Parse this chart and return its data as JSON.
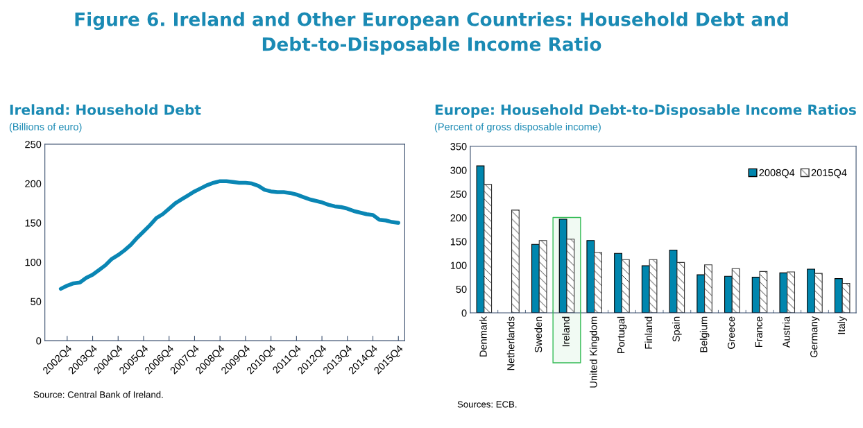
{
  "chart_data": [
    {
      "type": "line",
      "title": "Figure 6. Ireland and Other European Countries: Household Debt and Debt-to-Disposable Income Ratio",
      "subtitle": "Ireland: Household Debt",
      "ylabel": "(Billions of euro)",
      "categories": [
        null,
        "2002Q4",
        null,
        null,
        null,
        "2003Q4",
        null,
        null,
        null,
        "2004Q4",
        null,
        null,
        null,
        "2005Q4",
        null,
        null,
        null,
        "2006Q4",
        null,
        null,
        null,
        "2007Q4",
        null,
        null,
        null,
        "2008Q4",
        null,
        null,
        null,
        "2009Q4",
        null,
        null,
        null,
        "2010Q4",
        null,
        null,
        null,
        "2011Q4",
        null,
        null,
        null,
        "2012Q4",
        null,
        null,
        null,
        "2013Q4",
        null,
        null,
        null,
        "2014Q4",
        null,
        null,
        null,
        "2015Q4"
      ],
      "series": [
        {
          "color": "#0a86b4",
          "values": [
            66,
            70,
            73,
            74,
            80,
            84,
            90,
            96,
            104,
            109,
            115,
            122,
            131,
            139,
            147,
            156,
            161,
            168,
            175,
            180,
            185,
            190,
            194,
            198,
            201,
            203,
            203,
            202,
            201,
            201,
            200,
            197,
            192,
            190,
            189,
            189,
            188,
            186,
            183,
            180,
            178,
            176,
            173,
            171,
            170,
            168,
            165,
            163,
            161,
            160,
            154,
            153,
            151,
            150
          ]
        }
      ],
      "ylim": [
        0,
        250
      ],
      "yticks": [
        0,
        50,
        100,
        150,
        200,
        250
      ],
      "annotations": [
        "Source: Central Bank of Ireland."
      ]
    },
    {
      "type": "bar",
      "title": "Europe: Household Debt-to-Disposable Income Ratios",
      "ylabel": "(Percent of gross disposable income)",
      "categories": [
        "Denmark",
        "Netherlands",
        "Sweden",
        "Ireland",
        "United Kingdom",
        "Portugal",
        "Finland",
        "Spain",
        "Belgium",
        "Greece",
        "France",
        "Austria",
        "Germany",
        "Italy"
      ],
      "series": [
        {
          "name": "2008Q4",
          "color": "#0086ae",
          "values": [
            309,
            null,
            144,
            197,
            152,
            125,
            99,
            132,
            80,
            77,
            75,
            84,
            92,
            72
          ]
        },
        {
          "name": "2015Q4",
          "color": "#333333",
          "values": [
            270,
            216,
            152,
            155,
            127,
            112,
            112,
            106,
            101,
            93,
            87,
            86,
            83,
            62
          ]
        }
      ],
      "ylim": [
        0,
        350
      ],
      "yticks": [
        0,
        50,
        100,
        150,
        200,
        250,
        300,
        350
      ],
      "legend": "top right",
      "bands": [
        {
          "axis": "x",
          "from": "Ireland",
          "to": "Ireland",
          "color": "#33bb55"
        }
      ],
      "annotations": [
        "Sources: ECB."
      ]
    }
  ]
}
